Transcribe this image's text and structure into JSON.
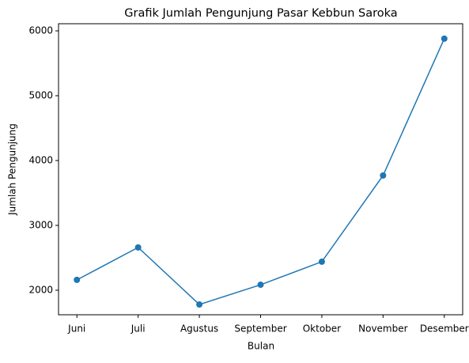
{
  "chart_data": {
    "type": "line",
    "title": "Grafik Jumlah Pengunjung Pasar Kebbun Saroka",
    "x_label": "Bulan",
    "y_label": "Jumlah Pengunjung",
    "categories": [
      "Juni",
      "Juli",
      "Agustus",
      "September",
      "Oktober",
      "November",
      "Desember"
    ],
    "series": [
      {
        "color": "#1f77b4",
        "values": [
          2160,
          2660,
          1780,
          2085,
          2440,
          3770,
          5880
        ]
      }
    ],
    "ylim": [
      1622,
      6110
    ],
    "yticks": [
      2000,
      3000,
      4000,
      5000,
      6000
    ],
    "grid": false,
    "marker": "o"
  }
}
